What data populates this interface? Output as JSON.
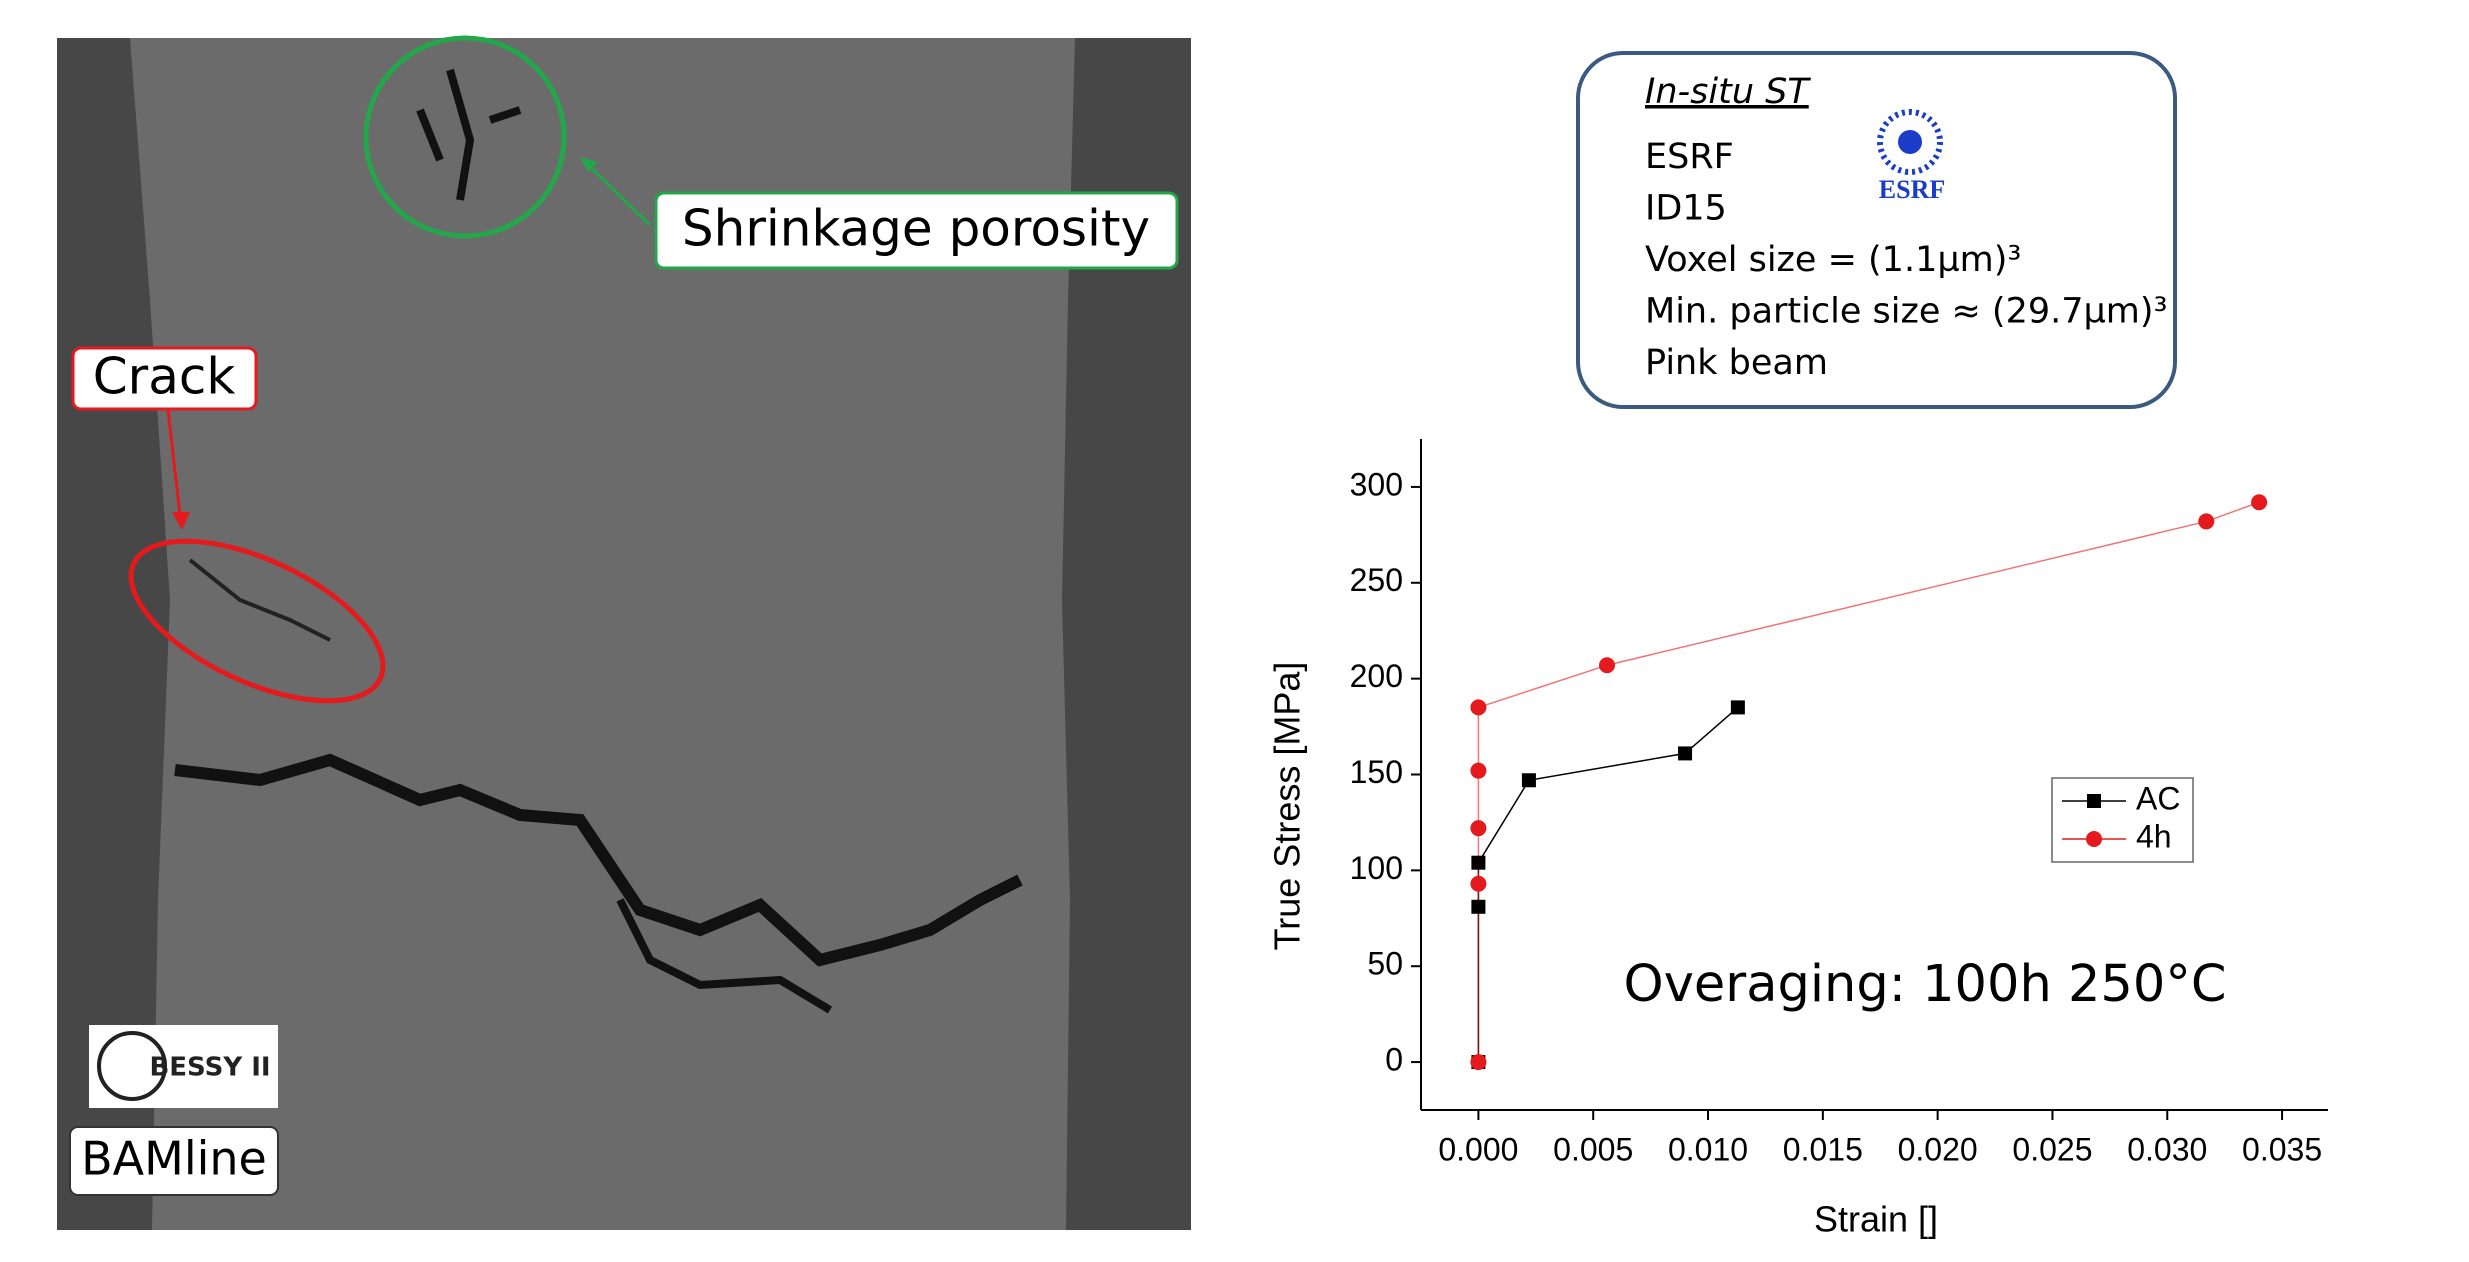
{
  "micrograph": {
    "labels": [
      "Shrinkage porosity",
      "Crack",
      "BAMline"
    ],
    "logo_text": "BESSY II"
  },
  "info_box": {
    "title": "In-situ ST",
    "lines": [
      "ESRF",
      "ID15",
      "Voxel size = (1.1µm)³",
      "Min. particle size ≈ (29.7µm)³",
      "Pink beam"
    ],
    "logo_text": "ESRF"
  },
  "chart_data": {
    "type": "line",
    "x_label": "Strain []",
    "y_label": "True Stress [MPa]",
    "annotations": [
      "Overaging: 100h 250°C"
    ],
    "series": [
      {
        "name": "AC",
        "color": "#000000",
        "marker": "square",
        "x": [
          0,
          0,
          0,
          0.0022,
          0.009,
          0.0113
        ],
        "values": [
          0,
          81,
          104,
          147,
          161,
          185
        ]
      },
      {
        "name": "4h",
        "color": "#e41a1c",
        "marker": "circle",
        "x": [
          0,
          0,
          0,
          0,
          0,
          0.0056,
          0.0317,
          0.034
        ],
        "values": [
          0,
          93,
          122,
          152,
          185,
          207,
          282,
          292
        ]
      }
    ],
    "xlim": [
      -0.0025,
      0.037
    ],
    "ylim": [
      -25,
      325
    ],
    "xticks": [
      {
        "value": 0,
        "label": "0.000"
      },
      {
        "value": 0.005,
        "label": "0.005"
      },
      {
        "value": 0.01,
        "label": "0.010"
      },
      {
        "value": 0.015,
        "label": "0.015"
      },
      {
        "value": 0.02,
        "label": "0.020"
      },
      {
        "value": 0.025,
        "label": "0.025"
      },
      {
        "value": 0.03,
        "label": "0.030"
      },
      {
        "value": 0.035,
        "label": "0.035"
      }
    ],
    "yticks": [
      0,
      50,
      100,
      150,
      200,
      250,
      300
    ],
    "legend": "right"
  }
}
